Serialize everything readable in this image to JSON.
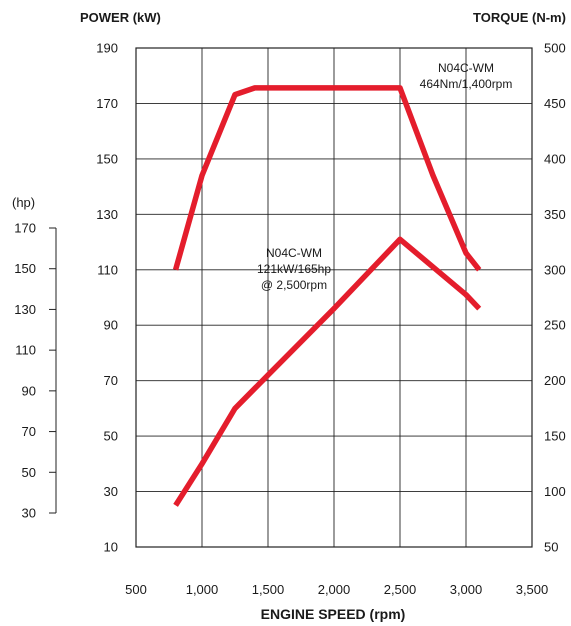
{
  "chart_data": {
    "type": "line",
    "title": "",
    "xlabel": "ENGINE SPEED (rpm)",
    "ylabel_left": "POWER (kW)",
    "ylabel_right": "TORQUE (N-m)",
    "ylabel_hp": "(hp)",
    "xlim": [
      500,
      3500
    ],
    "ylim_left": [
      10,
      190
    ],
    "ylim_right": [
      50,
      500
    ],
    "ylim_hp": [
      30,
      170
    ],
    "x_ticks": [
      "500",
      "1,000",
      "1,500",
      "2,000",
      "2,500",
      "3,000",
      "3,500"
    ],
    "x_tick_values": [
      500,
      1000,
      1500,
      2000,
      2500,
      3000,
      3500
    ],
    "left_ticks": [
      "10",
      "30",
      "50",
      "70",
      "90",
      "110",
      "130",
      "150",
      "170",
      "190"
    ],
    "left_tick_values": [
      10,
      30,
      50,
      70,
      90,
      110,
      130,
      150,
      170,
      190
    ],
    "right_ticks": [
      "50",
      "100",
      "150",
      "200",
      "250",
      "300",
      "350",
      "400",
      "450",
      "500"
    ],
    "right_tick_values": [
      50,
      100,
      150,
      200,
      250,
      300,
      350,
      400,
      450,
      500
    ],
    "hp_ticks": [
      "30",
      "50",
      "70",
      "90",
      "110",
      "130",
      "150",
      "170"
    ],
    "hp_tick_values": [
      30,
      50,
      70,
      90,
      110,
      130,
      150,
      170
    ],
    "grid": true,
    "line_color": "#e41d2c",
    "series": [
      {
        "axis": "right",
        "x": [
          800,
          1000,
          1250,
          1400,
          1800,
          2200,
          2500,
          2750,
          3000,
          3100
        ],
        "y": [
          300,
          385,
          458,
          464,
          464,
          464,
          464,
          385,
          315,
          300
        ]
      },
      {
        "axis": "left",
        "x": [
          800,
          1000,
          1250,
          1500,
          2000,
          2500,
          3000,
          3100
        ],
        "y": [
          25,
          40,
          60,
          72,
          96,
          121,
          101,
          96
        ]
      }
    ],
    "annotations": [
      {
        "lines": [
          "N04C-WM",
          "464Nm/1,400rpm"
        ]
      },
      {
        "lines": [
          "N04C-WM",
          "121kW/165hp",
          "@ 2,500rpm"
        ]
      }
    ]
  }
}
